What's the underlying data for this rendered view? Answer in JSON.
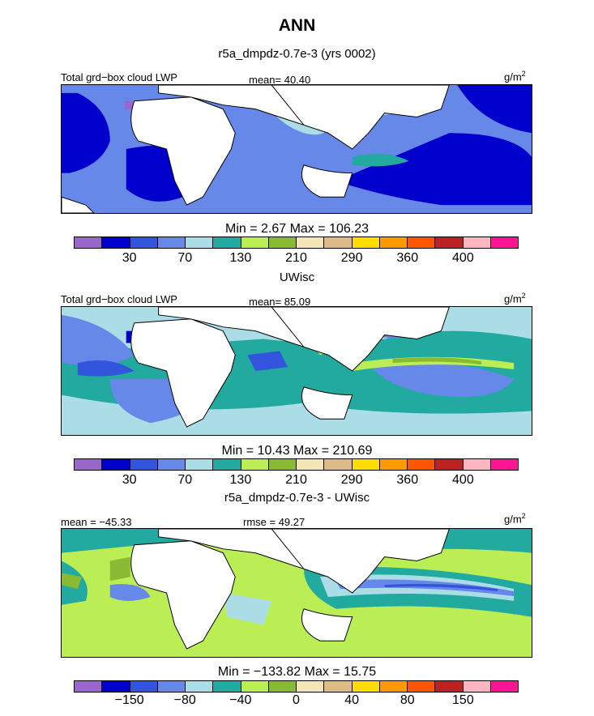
{
  "title": "ANN",
  "colors": [
    "#9966cc",
    "#0000cc",
    "#3355dd",
    "#6688e8",
    "#aadde6",
    "#22aaa0",
    "#bbee55",
    "#88bb33",
    "#f5e6b8",
    "#ddbb88",
    "#ffdd00",
    "#ff9900",
    "#ff5500",
    "#bb2222",
    "#ffb6c1",
    "#ff1493"
  ],
  "land_color": "#ffffff",
  "chart_data": [
    {
      "type": "heatmap",
      "title": "r5a_dmpdz-0.7e-3 (yrs 0002)",
      "left_label": "Total grd−box cloud LWP",
      "center_label": "mean=  40.40",
      "units": "g/m",
      "units_exp": "2",
      "mean": 40.4,
      "min": 2.67,
      "max": 106.23,
      "minmax_text": "Min =    2.67  Max =  106.23",
      "colorbar_ticks": [
        "30",
        "70",
        "130",
        "210",
        "290",
        "360",
        "400"
      ]
    },
    {
      "type": "heatmap",
      "title": "UWisc",
      "left_label": "Total grd−box cloud LWP",
      "center_label": "mean=  85.09",
      "units": "g/m",
      "units_exp": "2",
      "mean": 85.09,
      "min": 10.43,
      "max": 210.69,
      "minmax_text": "Min =   10.43  Max =  210.69",
      "colorbar_ticks": [
        "30",
        "70",
        "130",
        "210",
        "290",
        "360",
        "400"
      ]
    },
    {
      "type": "heatmap",
      "title": "r5a_dmpdz-0.7e-3 - UWisc",
      "left_label": "mean = −45.33",
      "center_label": "rmse =  49.27",
      "units": "g/m",
      "units_exp": "2",
      "mean": -45.33,
      "rmse": 49.27,
      "min": -133.82,
      "max": 15.75,
      "minmax_text": "Min =  −133.82  Max =   15.75",
      "colorbar_ticks": [
        "−150",
        "−80",
        "−40",
        "0",
        "40",
        "80",
        "150"
      ]
    }
  ]
}
